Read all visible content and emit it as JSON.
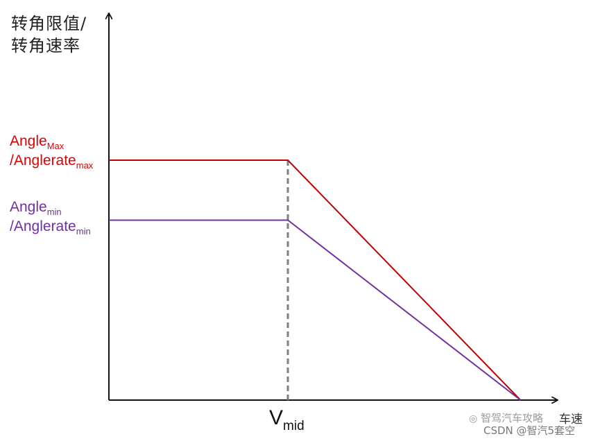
{
  "chart_data": {
    "type": "line",
    "y_title_line1": "转角限值/",
    "y_title_line2": "转角速率",
    "x_title": "车速",
    "x_mark": {
      "base": "V",
      "sub": "mid"
    },
    "y_ticks": [
      {
        "text1": "Angle",
        "sub1": "Max",
        "text2": "/Anglerate",
        "sub2": "max"
      },
      {
        "text1": "Angle",
        "sub1": "min",
        "text2": "/Anglerate",
        "sub2": "min"
      }
    ],
    "series": [
      {
        "color": "#c00000",
        "x": [
          0,
          1,
          2.3
        ],
        "y": [
          1.0,
          1.0,
          0
        ]
      },
      {
        "color": "#7030a0",
        "x": [
          0,
          1,
          2.3
        ],
        "y": [
          0.75,
          0.75,
          0
        ]
      }
    ],
    "vmid_x": 1,
    "xlim": [
      0,
      2.3
    ],
    "ylim": [
      0,
      1.0
    ]
  },
  "watermark": {
    "line1": "智驾汽车攻略",
    "line2": "CSDN @智汽5套空"
  }
}
